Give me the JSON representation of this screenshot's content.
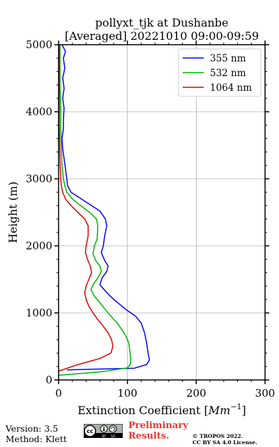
{
  "title_line1": "pollyxt_tjk at Dushanbe",
  "title_line2": "[Averaged] 20221010 09:00-09:59",
  "chart_data": {
    "type": "line",
    "xlabel": "Extinction Coefficient [Mm⁻¹]",
    "ylabel": "Height (m)",
    "xlim": [
      0,
      300
    ],
    "ylim": [
      0,
      5000
    ],
    "xticks": [
      0,
      100,
      200,
      300
    ],
    "yticks": [
      0,
      1000,
      2000,
      3000,
      4000,
      5000
    ],
    "grid": true,
    "legend_position": "top-right",
    "series": [
      {
        "name": "355 nm",
        "color": "#0000ff",
        "points": [
          [
            12,
            150
          ],
          [
            50,
            160
          ],
          [
            110,
            175
          ],
          [
            128,
            230
          ],
          [
            132,
            300
          ],
          [
            130,
            400
          ],
          [
            128,
            550
          ],
          [
            125,
            700
          ],
          [
            120,
            850
          ],
          [
            112,
            950
          ],
          [
            98,
            1050
          ],
          [
            86,
            1150
          ],
          [
            75,
            1250
          ],
          [
            66,
            1350
          ],
          [
            60,
            1420
          ],
          [
            63,
            1520
          ],
          [
            70,
            1620
          ],
          [
            72,
            1700
          ],
          [
            67,
            1780
          ],
          [
            62,
            1900
          ],
          [
            65,
            2000
          ],
          [
            67,
            2150
          ],
          [
            70,
            2300
          ],
          [
            68,
            2400
          ],
          [
            60,
            2520
          ],
          [
            45,
            2620
          ],
          [
            30,
            2720
          ],
          [
            18,
            2800
          ],
          [
            13,
            2900
          ],
          [
            12,
            3000
          ],
          [
            10,
            3150
          ],
          [
            8,
            3300
          ],
          [
            6,
            3450
          ],
          [
            5,
            3600
          ],
          [
            7,
            3750
          ],
          [
            7,
            3900
          ],
          [
            8,
            4050
          ],
          [
            6,
            4200
          ],
          [
            8,
            4350
          ],
          [
            6,
            4500
          ],
          [
            9,
            4650
          ],
          [
            7,
            4800
          ],
          [
            10,
            4900
          ],
          [
            5,
            5000
          ]
        ]
      },
      {
        "name": "532 nm",
        "color": "#00b300",
        "points": [
          [
            0,
            70
          ],
          [
            60,
            120
          ],
          [
            100,
            180
          ],
          [
            105,
            250
          ],
          [
            104,
            400
          ],
          [
            102,
            550
          ],
          [
            98,
            650
          ],
          [
            92,
            750
          ],
          [
            85,
            850
          ],
          [
            76,
            950
          ],
          [
            68,
            1050
          ],
          [
            60,
            1150
          ],
          [
            52,
            1250
          ],
          [
            47,
            1350
          ],
          [
            50,
            1420
          ],
          [
            57,
            1520
          ],
          [
            62,
            1620
          ],
          [
            60,
            1700
          ],
          [
            54,
            1780
          ],
          [
            50,
            1880
          ],
          [
            52,
            2000
          ],
          [
            56,
            2100
          ],
          [
            57,
            2300
          ],
          [
            55,
            2400
          ],
          [
            45,
            2500
          ],
          [
            32,
            2600
          ],
          [
            20,
            2700
          ],
          [
            12,
            2800
          ],
          [
            9,
            2900
          ],
          [
            7,
            3000
          ],
          [
            5,
            3200
          ],
          [
            4,
            3500
          ],
          [
            3,
            3800
          ],
          [
            3,
            4100
          ],
          [
            2,
            4400
          ],
          [
            2,
            4700
          ],
          [
            2,
            5000
          ]
        ]
      },
      {
        "name": "1064 nm",
        "color": "#e00000",
        "points": [
          [
            0,
            130
          ],
          [
            25,
            220
          ],
          [
            60,
            320
          ],
          [
            76,
            400
          ],
          [
            79,
            500
          ],
          [
            77,
            600
          ],
          [
            72,
            700
          ],
          [
            65,
            800
          ],
          [
            57,
            900
          ],
          [
            50,
            1000
          ],
          [
            44,
            1100
          ],
          [
            40,
            1200
          ],
          [
            38,
            1300
          ],
          [
            40,
            1400
          ],
          [
            44,
            1500
          ],
          [
            48,
            1600
          ],
          [
            46,
            1700
          ],
          [
            42,
            1800
          ],
          [
            39,
            1900
          ],
          [
            40,
            2000
          ],
          [
            43,
            2150
          ],
          [
            43,
            2300
          ],
          [
            38,
            2400
          ],
          [
            28,
            2500
          ],
          [
            18,
            2600
          ],
          [
            10,
            2700
          ],
          [
            6,
            2800
          ],
          [
            4,
            2900
          ],
          [
            3,
            3000
          ],
          [
            2,
            3300
          ],
          [
            1,
            3800
          ],
          [
            1,
            4400
          ],
          [
            1,
            5000
          ]
        ]
      }
    ]
  },
  "footer": {
    "version": "Version: 3.5",
    "method": "Method: Klett",
    "license_badge": "cc-by-sa-icon",
    "prelim_line1": "Preliminary",
    "prelim_line2": "Results.",
    "copyright_line1": "© TROPOS 2022.",
    "copyright_line2": "CC BY SA 4.0 License."
  }
}
